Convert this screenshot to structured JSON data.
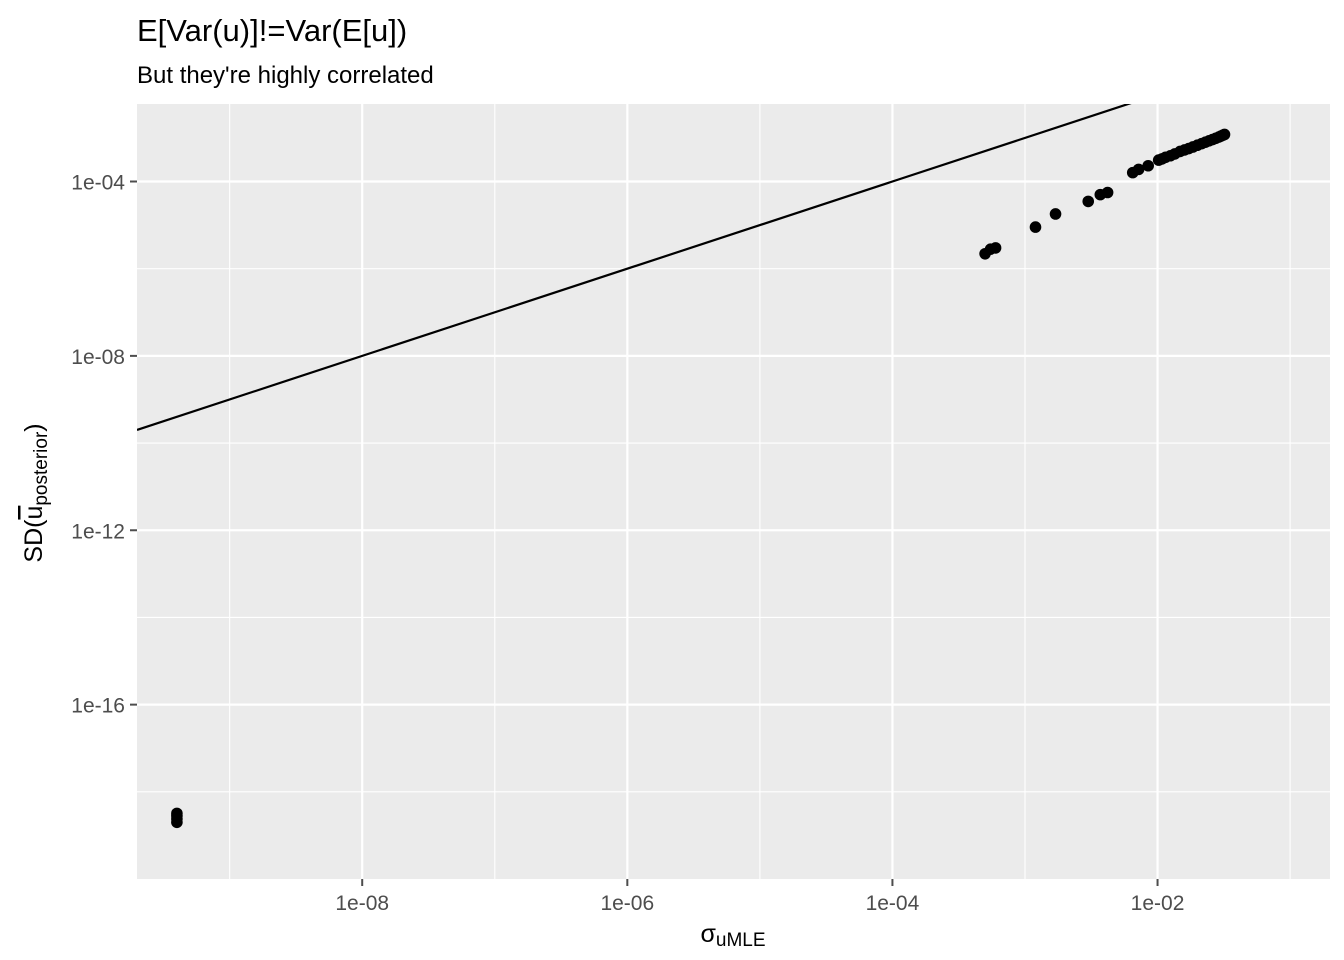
{
  "chart_data": {
    "type": "scatter",
    "title": "E[Var(u)]!=Var(E[u])",
    "subtitle": "But they're highly correlated",
    "xlabel": {
      "base": "σ",
      "sub": "uMLE"
    },
    "ylabel": {
      "prefix": "SD(",
      "base": "u",
      "sub": "posterior",
      "suffix": ")"
    },
    "x_scale": "log10",
    "y_scale": "log10",
    "xlim": [
      2e-10,
      0.2
    ],
    "ylim": [
      1e-20,
      0.006
    ],
    "x_ticks": [
      {
        "value": 1e-08,
        "label": "1e-08"
      },
      {
        "value": 1e-06,
        "label": "1e-06"
      },
      {
        "value": 0.0001,
        "label": "1e-04"
      },
      {
        "value": 0.01,
        "label": "1e-02"
      }
    ],
    "y_ticks": [
      {
        "value": 0.0001,
        "label": "1e-04"
      },
      {
        "value": 1e-08,
        "label": "1e-08"
      },
      {
        "value": 1e-12,
        "label": "1e-12"
      },
      {
        "value": 1e-16,
        "label": "1e-16"
      }
    ],
    "grid": true,
    "reference_line": {
      "type": "identity",
      "slope": 1,
      "intercept": 0
    },
    "colors": {
      "panel": "#ebebeb",
      "grid": "#ffffff",
      "points": "#000000",
      "line": "#000000",
      "tick": "#4d4d4d"
    },
    "series": [
      {
        "points": [
          [
            4e-10,
            2e-19
          ],
          [
            4e-10,
            2.4e-19
          ],
          [
            4e-10,
            2.8e-19
          ],
          [
            4e-10,
            3.2e-19
          ],
          [
            0.0005,
            2.2e-06
          ],
          [
            0.00055,
            2.8e-06
          ],
          [
            0.0006,
            3e-06
          ],
          [
            0.0012,
            9e-06
          ],
          [
            0.0017,
            1.8e-05
          ],
          [
            0.003,
            3.5e-05
          ],
          [
            0.0037,
            5e-05
          ],
          [
            0.0042,
            5.6e-05
          ],
          [
            0.0065,
            0.00016
          ],
          [
            0.0072,
            0.00019
          ],
          [
            0.0085,
            0.00023
          ],
          [
            0.0102,
            0.00031
          ],
          [
            0.0108,
            0.00033
          ],
          [
            0.0115,
            0.00036
          ],
          [
            0.0125,
            0.00039
          ],
          [
            0.0135,
            0.00043
          ],
          [
            0.0148,
            0.00049
          ],
          [
            0.016,
            0.00053
          ],
          [
            0.0172,
            0.00057
          ],
          [
            0.0185,
            0.00062
          ],
          [
            0.02,
            0.00068
          ],
          [
            0.0215,
            0.00074
          ],
          [
            0.023,
            0.0008
          ],
          [
            0.0245,
            0.00086
          ],
          [
            0.026,
            0.00092
          ],
          [
            0.0275,
            0.00098
          ],
          [
            0.029,
            0.00105
          ],
          [
            0.03,
            0.0011
          ],
          [
            0.031,
            0.00115
          ],
          [
            0.032,
            0.0012
          ]
        ]
      }
    ]
  }
}
